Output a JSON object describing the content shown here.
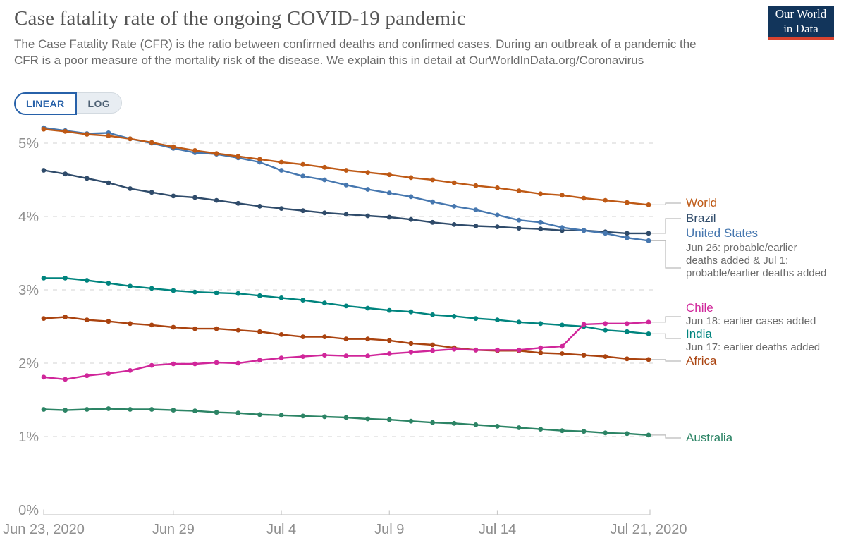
{
  "header": {
    "title": "Case fatality rate of the ongoing COVID-19 pandemic",
    "subtitle": "The Case Fatality Rate (CFR) is the ratio between confirmed deaths and confirmed cases. During an outbreak of a pandemic the CFR is a poor measure of the mortality risk of the disease. We explain this in detail at ",
    "subtitle_link": "OurWorldInData.org/Coronavirus",
    "logo_line1": "Our World",
    "logo_line2": "in Data"
  },
  "controls": {
    "linear_label": "LINEAR",
    "log_label": "LOG",
    "active": "linear",
    "accent_color": "#2761A9"
  },
  "chart_data": {
    "type": "line",
    "title": "Case fatality rate of the ongoing COVID-19 pandemic",
    "ylabel": "Case fatality rate",
    "ylim": [
      0,
      5.5
    ],
    "grid": "dashed-horizontal",
    "legend_position": "right",
    "yticks": [
      {
        "v": 0,
        "label": "0%"
      },
      {
        "v": 1,
        "label": "1%"
      },
      {
        "v": 2,
        "label": "2%"
      },
      {
        "v": 3,
        "label": "3%"
      },
      {
        "v": 4,
        "label": "4%"
      },
      {
        "v": 5,
        "label": "5%"
      }
    ],
    "xticks": [
      {
        "day": 0,
        "label": "Jun 23, 2020"
      },
      {
        "day": 6,
        "label": "Jun 29"
      },
      {
        "day": 11,
        "label": "Jul 4"
      },
      {
        "day": 16,
        "label": "Jul 9"
      },
      {
        "day": 21,
        "label": "Jul 14"
      },
      {
        "day": 28,
        "label": "Jul 21, 2020"
      }
    ],
    "x_dates": [
      "Jun 23",
      "Jun 24",
      "Jun 25",
      "Jun 26",
      "Jun 27",
      "Jun 28",
      "Jun 29",
      "Jun 30",
      "Jul 1",
      "Jul 2",
      "Jul 3",
      "Jul 4",
      "Jul 5",
      "Jul 6",
      "Jul 7",
      "Jul 8",
      "Jul 9",
      "Jul 10",
      "Jul 11",
      "Jul 12",
      "Jul 13",
      "Jul 14",
      "Jul 15",
      "Jul 16",
      "Jul 17",
      "Jul 18",
      "Jul 19",
      "Jul 20",
      "Jul 21"
    ],
    "series": [
      {
        "name": "World",
        "color": "#BE5915",
        "note": "",
        "legend_connector_y": 288,
        "values": [
          5.19,
          5.16,
          5.12,
          5.1,
          5.06,
          5.01,
          4.95,
          4.9,
          4.86,
          4.82,
          4.78,
          4.74,
          4.71,
          4.67,
          4.63,
          4.6,
          4.57,
          4.53,
          4.5,
          4.46,
          4.42,
          4.39,
          4.35,
          4.31,
          4.29,
          4.25,
          4.22,
          4.19,
          4.16
        ]
      },
      {
        "name": "Brazil",
        "color": "#2F4B6A",
        "note": "",
        "legend_connector_y": 310,
        "values": [
          4.63,
          4.58,
          4.52,
          4.46,
          4.38,
          4.33,
          4.28,
          4.26,
          4.22,
          4.18,
          4.14,
          4.11,
          4.08,
          4.05,
          4.03,
          4.01,
          3.99,
          3.96,
          3.92,
          3.89,
          3.87,
          3.86,
          3.84,
          3.83,
          3.81,
          3.81,
          3.79,
          3.77,
          3.77
        ]
      },
      {
        "name": "United States",
        "color": "#4677AF",
        "note": "Jun 26: probable/earlier deaths added & Jul 1: probable/earlier deaths added",
        "legend_connector_y": 380,
        "values": [
          5.21,
          5.17,
          5.13,
          5.14,
          5.06,
          5.0,
          4.93,
          4.87,
          4.85,
          4.8,
          4.74,
          4.63,
          4.55,
          4.5,
          4.43,
          4.37,
          4.32,
          4.27,
          4.2,
          4.14,
          4.09,
          4.02,
          3.95,
          3.92,
          3.85,
          3.81,
          3.77,
          3.71,
          3.67
        ]
      },
      {
        "name": "Chile",
        "color": "#D0269A",
        "note": "Jun 18: earlier cases added",
        "legend_connector_y": 449,
        "values": [
          1.81,
          1.78,
          1.83,
          1.86,
          1.9,
          1.97,
          1.99,
          1.99,
          2.01,
          2.0,
          2.04,
          2.07,
          2.09,
          2.11,
          2.1,
          2.1,
          2.13,
          2.15,
          2.17,
          2.19,
          2.18,
          2.18,
          2.18,
          2.21,
          2.23,
          2.53,
          2.54,
          2.54,
          2.56
        ]
      },
      {
        "name": "India",
        "color": "#00847E",
        "note": "Jun 17: earlier deaths added",
        "legend_connector_y": 480,
        "values": [
          3.16,
          3.16,
          3.13,
          3.09,
          3.05,
          3.02,
          2.99,
          2.97,
          2.96,
          2.95,
          2.92,
          2.89,
          2.86,
          2.82,
          2.78,
          2.75,
          2.72,
          2.7,
          2.66,
          2.64,
          2.61,
          2.59,
          2.56,
          2.54,
          2.52,
          2.5,
          2.45,
          2.43,
          2.4
        ]
      },
      {
        "name": "Africa",
        "color": "#AA430F",
        "note": "",
        "legend_connector_y": 512,
        "values": [
          2.61,
          2.63,
          2.59,
          2.57,
          2.54,
          2.52,
          2.49,
          2.47,
          2.47,
          2.45,
          2.43,
          2.39,
          2.36,
          2.36,
          2.33,
          2.33,
          2.31,
          2.27,
          2.25,
          2.21,
          2.18,
          2.17,
          2.17,
          2.14,
          2.13,
          2.11,
          2.09,
          2.06,
          2.05
        ]
      },
      {
        "name": "Australia",
        "color": "#2C8465",
        "note": "",
        "legend_connector_y": 621,
        "values": [
          1.37,
          1.36,
          1.37,
          1.38,
          1.37,
          1.37,
          1.36,
          1.35,
          1.33,
          1.32,
          1.3,
          1.29,
          1.28,
          1.27,
          1.26,
          1.24,
          1.23,
          1.21,
          1.19,
          1.18,
          1.16,
          1.14,
          1.12,
          1.1,
          1.08,
          1.07,
          1.05,
          1.04,
          1.02
        ]
      }
    ],
    "draw_order": [
      1,
      2,
      0,
      4,
      5,
      3,
      6
    ]
  }
}
